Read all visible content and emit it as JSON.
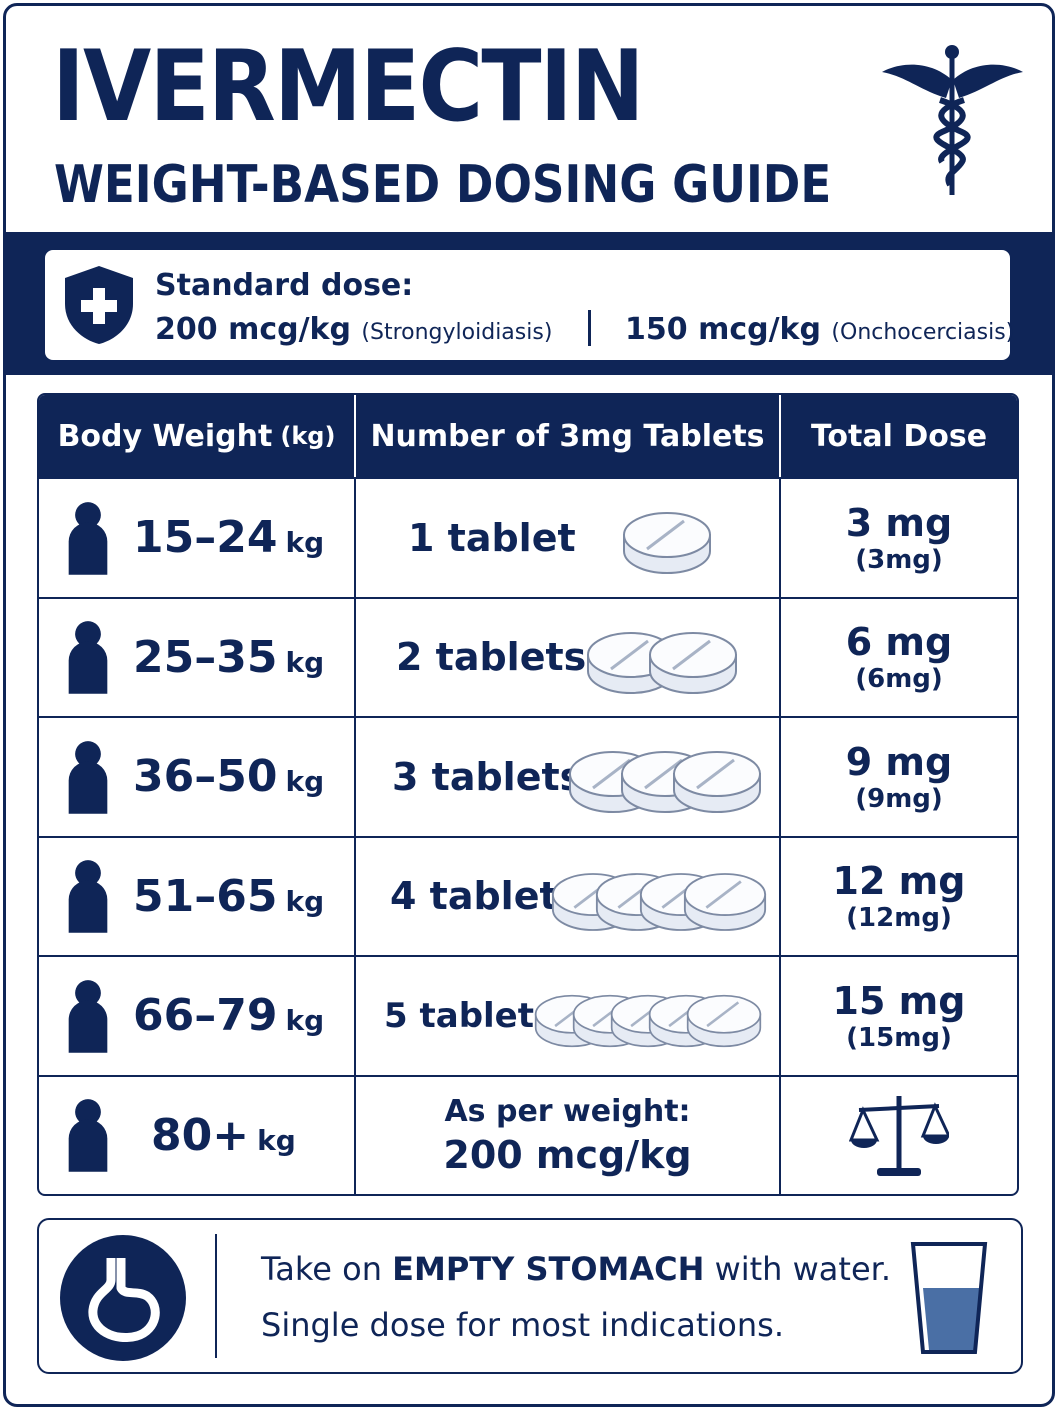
{
  "header": {
    "title": "IVERMECTIN",
    "subtitle": "WEIGHT-BASED DOSING GUIDE"
  },
  "standard": {
    "label": "Standard dose:",
    "doses": [
      {
        "amount": "200 mcg/kg",
        "indication": "(Strongyloidiasis)"
      },
      {
        "amount": "150 mcg/kg",
        "indication": "(Onchocerciasis)"
      }
    ]
  },
  "table": {
    "headers": [
      {
        "main": "Body Weight",
        "unit": "(kg)"
      },
      {
        "main": "Number of 3mg Tablets"
      },
      {
        "main": "Total Dose"
      }
    ],
    "rows": [
      {
        "weight": "15–24",
        "unit": "kg",
        "tablets": "1 tablet",
        "dose": "3 mg",
        "dose_note": "(3mg)"
      },
      {
        "weight": "25–35",
        "unit": "kg",
        "tablets": "2 tablets",
        "dose": "6 mg",
        "dose_note": "(6mg)"
      },
      {
        "weight": "36–50",
        "unit": "kg",
        "tablets": "3 tablets",
        "dose": "9 mg",
        "dose_note": "(9mg)"
      },
      {
        "weight": "51–65",
        "unit": "kg",
        "tablets": "4 tablets",
        "dose": "12 mg",
        "dose_note": "(12mg)"
      },
      {
        "weight": "66–79",
        "unit": "kg",
        "tablets": "5 tablets",
        "dose": "15 mg",
        "dose_note": "(15mg)"
      },
      {
        "weight": "80+",
        "unit": "kg",
        "tablets": "As per weight:",
        "tablets_note": "200 mcg/kg"
      }
    ]
  },
  "footer": {
    "line1": {
      "before": "Take on ",
      "emphasis": "EMPTY STOMACH",
      "after": " with water."
    },
    "line2": "Single dose for most indications."
  }
}
